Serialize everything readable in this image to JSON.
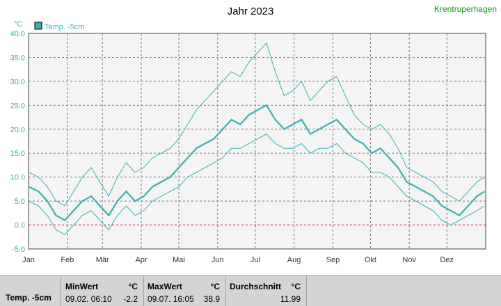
{
  "header": {
    "location": "Krentruperhagen"
  },
  "chart_data": {
    "type": "line",
    "title": "Jahr 2023",
    "ylabel": "°C",
    "ylim": [
      -5,
      40
    ],
    "yticks": [
      "40.0",
      "35.0",
      "30.0",
      "25.0",
      "20.0",
      "15.0",
      "10.0",
      "5.0",
      "0.0",
      "-5.0"
    ],
    "yticks_values": [
      40,
      35,
      30,
      25,
      20,
      15,
      10,
      5,
      0,
      -5
    ],
    "xlim": [
      0,
      365
    ],
    "x_ticks": [
      {
        "label": "Jan",
        "day": 0
      },
      {
        "label": "Feb",
        "day": 31
      },
      {
        "label": "Mär",
        "day": 59
      },
      {
        "label": "Apr",
        "day": 90
      },
      {
        "label": "Mai",
        "day": 120
      },
      {
        "label": "Jun",
        "day": 151
      },
      {
        "label": "Jul",
        "day": 181
      },
      {
        "label": "Aug",
        "day": 212
      },
      {
        "label": "Sep",
        "day": 243
      },
      {
        "label": "Okt",
        "day": 273
      },
      {
        "label": "Nov",
        "day": 304
      },
      {
        "label": "Dez",
        "day": 334
      }
    ],
    "grid": true,
    "legend": "top-left",
    "reference_line": {
      "y": 0,
      "color": "#cc0000"
    },
    "series_color": "#3ab0b0",
    "series": [
      {
        "name": "Temp. -5cm",
        "x": [
          0,
          8,
          15,
          22,
          29,
          36,
          43,
          50,
          57,
          64,
          71,
          78,
          85,
          92,
          99,
          106,
          113,
          120,
          127,
          134,
          141,
          148,
          155,
          162,
          169,
          176,
          183,
          190,
          197,
          204,
          211,
          218,
          225,
          232,
          239,
          246,
          253,
          260,
          267,
          274,
          281,
          288,
          295,
          302,
          309,
          316,
          323,
          330,
          337,
          344,
          351,
          358,
          364
        ],
        "mean": [
          8,
          7,
          5,
          2,
          1,
          3,
          5,
          6,
          4,
          2,
          5,
          7,
          5,
          6,
          8,
          9,
          10,
          12,
          14,
          16,
          17,
          18,
          20,
          22,
          21,
          23,
          24,
          25,
          22,
          20,
          21,
          22,
          19,
          20,
          21,
          22,
          20,
          18,
          17,
          15,
          16,
          14,
          12,
          9,
          8,
          7,
          6,
          4,
          3,
          2,
          4,
          6,
          7
        ],
        "min": [
          5,
          4,
          2,
          -1,
          -2,
          0,
          2,
          3,
          1,
          -1,
          2,
          4,
          2,
          3,
          5,
          6,
          7,
          8,
          10,
          11,
          12,
          13,
          14,
          16,
          16,
          17,
          18,
          19,
          17,
          16,
          16,
          17,
          15,
          16,
          16,
          17,
          15,
          14,
          13,
          11,
          11,
          10,
          8,
          6,
          5,
          4,
          3,
          1,
          0,
          1,
          2,
          3,
          4
        ],
        "max": [
          11,
          10,
          8,
          5,
          4,
          7,
          10,
          12,
          9,
          6,
          10,
          13,
          11,
          12,
          14,
          15,
          16,
          18,
          21,
          24,
          26,
          28,
          30,
          32,
          31,
          34,
          36,
          38,
          32,
          27,
          28,
          30,
          26,
          28,
          30,
          31,
          27,
          23,
          21,
          20,
          21,
          19,
          16,
          12,
          11,
          10,
          9,
          7,
          6,
          5,
          7,
          9,
          10
        ]
      }
    ]
  },
  "footer": {
    "series_label": "Temp. -5cm",
    "min": {
      "header": "MinWert",
      "unit": "°C",
      "time": "09.02.  06:10",
      "value": "-2.2"
    },
    "max": {
      "header": "MaxWert",
      "unit": "°C",
      "time": "09.07.  16:05",
      "value": "38.9"
    },
    "avg": {
      "header": "Durchschnitt",
      "unit": "°C",
      "value": "11.99"
    }
  }
}
